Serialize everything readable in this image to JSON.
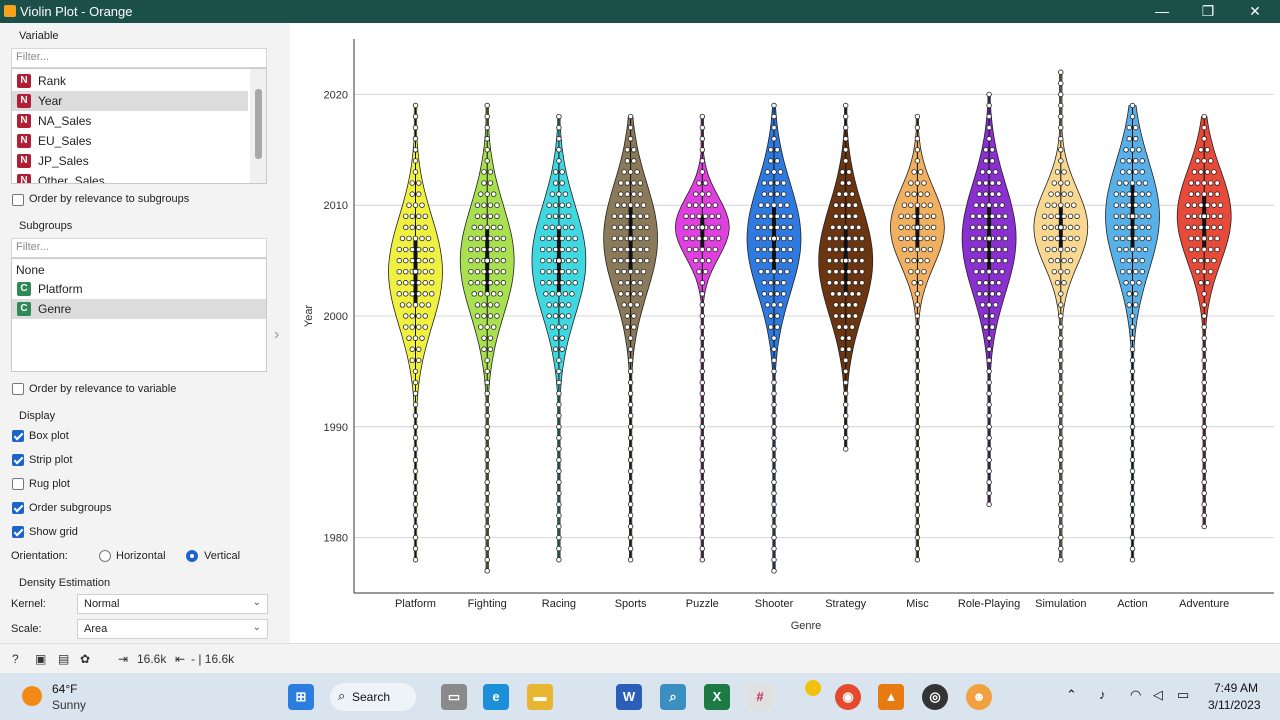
{
  "window": {
    "title": "Violin Plot - Orange",
    "minimize": "—",
    "maximize": "❐",
    "close": "✕"
  },
  "variable": {
    "title": "Variable",
    "filter_placeholder": "Filter...",
    "items": [
      {
        "type": "N",
        "label": "Rank"
      },
      {
        "type": "N",
        "label": "Year"
      },
      {
        "type": "N",
        "label": "NA_Sales"
      },
      {
        "type": "N",
        "label": "EU_Sales"
      },
      {
        "type": "N",
        "label": "JP_Sales"
      },
      {
        "type": "N",
        "label": "Other_Sales"
      }
    ],
    "selected_index": 1,
    "order_label": "Order by relevance to subgroups",
    "order_checked": false
  },
  "subgroups": {
    "title": "Subgroups",
    "filter_placeholder": "Filter...",
    "none_label": "None",
    "items": [
      {
        "type": "C",
        "label": "Platform"
      },
      {
        "type": "C",
        "label": "Genre"
      }
    ],
    "selected_index": 1,
    "order_label": "Order by relevance to variable",
    "order_checked": false
  },
  "display": {
    "title": "Display",
    "box_plot": "Box plot",
    "box_plot_checked": true,
    "strip_plot": "Strip plot",
    "strip_plot_checked": true,
    "rug_plot": "Rug plot",
    "rug_plot_checked": false,
    "order_subgroups": "Order subgroups",
    "order_subgroups_checked": true,
    "show_grid": "Show grid",
    "show_grid_checked": true,
    "orientation_label": "Orientation:",
    "horizontal": "Horizontal",
    "vertical": "Vertical",
    "orientation_selected": "Vertical"
  },
  "density": {
    "title": "Density Estimation",
    "kernel_label": "Kernel:",
    "kernel_value": "Normal",
    "scale_label": "Scale:",
    "scale_value": "Area"
  },
  "status": {
    "input_count": "16.6k",
    "output_count": "- | 16.6k"
  },
  "chart_data": {
    "type": "violin",
    "xlabel": "Genre",
    "ylabel": "Year",
    "ylim": [
      1975,
      2025
    ],
    "yticks": [
      1980,
      1990,
      2000,
      2010,
      2020
    ],
    "grid": true,
    "categories": [
      "Platform",
      "Fighting",
      "Racing",
      "Sports",
      "Puzzle",
      "Shooter",
      "Strategy",
      "Misc",
      "Role-Playing",
      "Simulation",
      "Action",
      "Adventure"
    ],
    "colors": [
      "#f0f040",
      "#a8e050",
      "#40d8e0",
      "#8a7a5a",
      "#e040e0",
      "#2f7ae0",
      "#6a3510",
      "#f0b060",
      "#8a2fd0",
      "#f8d890",
      "#58b0e8",
      "#e84a3a"
    ],
    "ranges": [
      [
        1978,
        2019
      ],
      [
        1977,
        2019
      ],
      [
        1978,
        2018
      ],
      [
        1978,
        2018
      ],
      [
        1978,
        2018
      ],
      [
        1977,
        2019
      ],
      [
        1988,
        2019
      ],
      [
        1978,
        2018
      ],
      [
        1983,
        2020
      ],
      [
        1978,
        2022
      ],
      [
        1978,
        2019
      ],
      [
        1981,
        2018
      ]
    ],
    "medians": [
      2004,
      2005,
      2005,
      2007,
      2008,
      2007,
      2005,
      2008,
      2007,
      2008,
      2009,
      2009
    ],
    "q1": [
      2001,
      2002,
      2002,
      2004,
      2006,
      2004,
      2002,
      2006,
      2004,
      2006,
      2006,
      2006
    ],
    "q3": [
      2007,
      2008,
      2008,
      2010,
      2009,
      2010,
      2008,
      2010,
      2010,
      2010,
      2012,
      2011
    ]
  },
  "taskbar": {
    "weather_temp": "64°F",
    "weather_desc": "Sunny",
    "search": "Search",
    "time": "7:49 AM",
    "date": "3/11/2023"
  }
}
